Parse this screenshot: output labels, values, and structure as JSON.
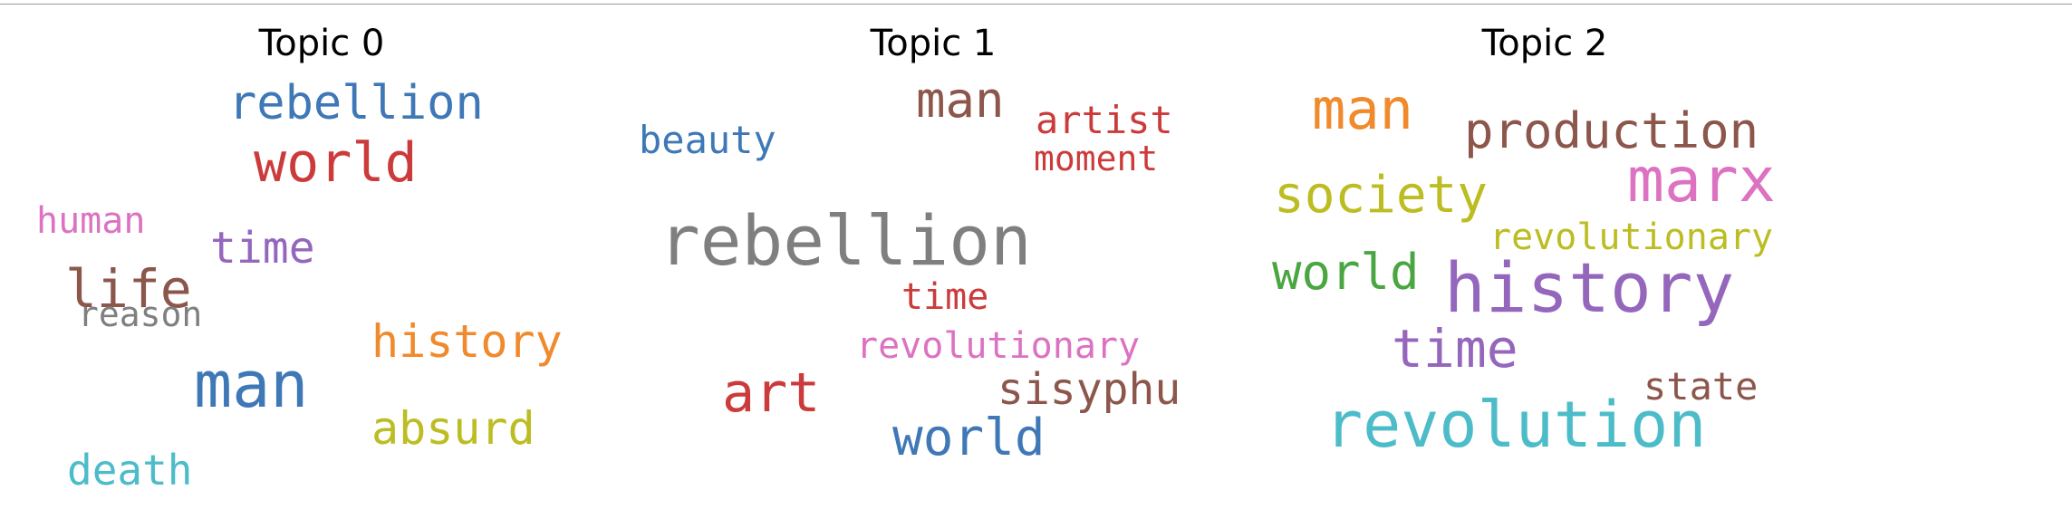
{
  "colors": {
    "blue": "#3f78b6",
    "red": "#cc3b3b",
    "pink": "#dc72c1",
    "purple": "#9467bd",
    "brown": "#8c564b",
    "gray": "#7f7f7f",
    "orange": "#f08a2c",
    "olive": "#bcbd22",
    "cyan": "#4cbcc9",
    "green": "#4aa640"
  },
  "topics": [
    {
      "title": "Topic 0",
      "words": [
        {
          "text": "rebellion",
          "color": "#3f78b6"
        },
        {
          "text": "world",
          "color": "#cc3b3b"
        },
        {
          "text": "human",
          "color": "#dc72c1"
        },
        {
          "text": "time",
          "color": "#9467bd"
        },
        {
          "text": "life",
          "color": "#8c564b"
        },
        {
          "text": "reason",
          "color": "#7f7f7f"
        },
        {
          "text": "history",
          "color": "#f08a2c"
        },
        {
          "text": "man",
          "color": "#3f78b6"
        },
        {
          "text": "absurd",
          "color": "#bcbd22"
        },
        {
          "text": "death",
          "color": "#4cbcc9"
        }
      ]
    },
    {
      "title": "Topic 1",
      "words": [
        {
          "text": "man",
          "color": "#8c564b"
        },
        {
          "text": "artist",
          "color": "#cc3b3b"
        },
        {
          "text": "beauty",
          "color": "#3f78b6"
        },
        {
          "text": "moment",
          "color": "#cc3b3b"
        },
        {
          "text": "rebellion",
          "color": "#7f7f7f"
        },
        {
          "text": "time",
          "color": "#cc3b3b"
        },
        {
          "text": "revolutionary",
          "color": "#dc72c1"
        },
        {
          "text": "art",
          "color": "#cc3b3b"
        },
        {
          "text": "sisyphu",
          "color": "#8c564b"
        },
        {
          "text": "world",
          "color": "#3f78b6"
        }
      ]
    },
    {
      "title": "Topic 2",
      "words": [
        {
          "text": "man",
          "color": "#f08a2c"
        },
        {
          "text": "production",
          "color": "#8c564b"
        },
        {
          "text": "marx",
          "color": "#dc72c1"
        },
        {
          "text": "society",
          "color": "#bcbd22"
        },
        {
          "text": "revolutionary",
          "color": "#bcbd22"
        },
        {
          "text": "world",
          "color": "#4aa640"
        },
        {
          "text": "history",
          "color": "#9467bd"
        },
        {
          "text": "time",
          "color": "#9467bd"
        },
        {
          "text": "state",
          "color": "#8c564b"
        },
        {
          "text": "revolution",
          "color": "#4cbcc9"
        }
      ]
    }
  ]
}
